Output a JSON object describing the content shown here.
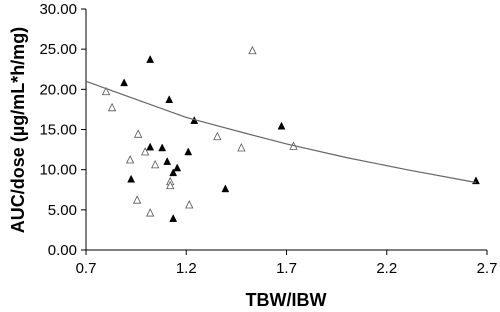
{
  "chart_data": {
    "type": "scatter",
    "xlabel": "TBW/IBW",
    "ylabel": "AUC/dose (µg/mL*h/mg)",
    "xlim": [
      0.7,
      2.7
    ],
    "xticks": [
      0.7,
      1.2,
      1.7,
      2.2,
      2.7
    ],
    "ylim": [
      0,
      30
    ],
    "yticks": [
      {
        "value": 0,
        "label": "0.00"
      },
      {
        "value": 5,
        "label": "5.00"
      },
      {
        "value": 10,
        "label": "10.00"
      },
      {
        "value": 15,
        "label": "15.00"
      },
      {
        "value": 20,
        "label": "20.00"
      },
      {
        "value": 25,
        "label": "25.00"
      },
      {
        "value": 30,
        "label": "30.00"
      }
    ],
    "series": [
      {
        "marker": "filled-triangle",
        "color": "#000000",
        "x": [
          0.89,
          1.02,
          1.115,
          1.24,
          1.02,
          1.08,
          1.105,
          1.155,
          1.135,
          1.21,
          0.925,
          1.135,
          1.395,
          1.675,
          2.645
        ],
        "values": [
          20.8,
          23.7,
          18.7,
          16.1,
          12.8,
          12.7,
          11.0,
          10.2,
          9.6,
          12.2,
          8.8,
          3.9,
          7.6,
          15.4,
          8.6
        ]
      },
      {
        "marker": "open-triangle",
        "color": "#555555",
        "x": [
          0.8,
          0.83,
          0.96,
          0.995,
          0.92,
          1.045,
          0.955,
          1.02,
          1.12,
          1.12,
          1.215,
          1.355,
          1.475,
          1.53,
          1.735
        ],
        "values": [
          19.7,
          17.7,
          14.4,
          12.2,
          11.2,
          10.6,
          6.2,
          4.6,
          8.5,
          8.0,
          5.6,
          14.1,
          12.7,
          24.8,
          12.9
        ]
      },
      {
        "marker": "line",
        "color": "#666666",
        "x": [
          0.7,
          0.9,
          1.2,
          1.5,
          1.7,
          2.0,
          2.3,
          2.645
        ],
        "values": [
          21.0,
          19.2,
          16.5,
          14.5,
          13.2,
          11.5,
          10.0,
          8.4
        ]
      }
    ]
  }
}
